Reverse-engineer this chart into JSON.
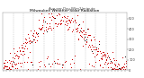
{
  "title": "Milwaukee Weather Solar Radiation",
  "subtitle": "Avg per Day W/m2/minute",
  "ylim": [
    0,
    560
  ],
  "xlim": [
    0,
    366
  ],
  "background_color": "#ffffff",
  "dot_color_primary": "#cc0000",
  "dot_color_secondary": "#111111",
  "title_fontsize": 3.2,
  "subtitle_fontsize": 2.8,
  "tick_fontsize": 2.5,
  "grid_color": "#999999",
  "num_points": 365,
  "month_boundaries": [
    1,
    32,
    60,
    91,
    121,
    152,
    182,
    213,
    244,
    274,
    305,
    335,
    366
  ],
  "ytick_vals": [
    0,
    100,
    200,
    300,
    400,
    500
  ],
  "seed": 42
}
